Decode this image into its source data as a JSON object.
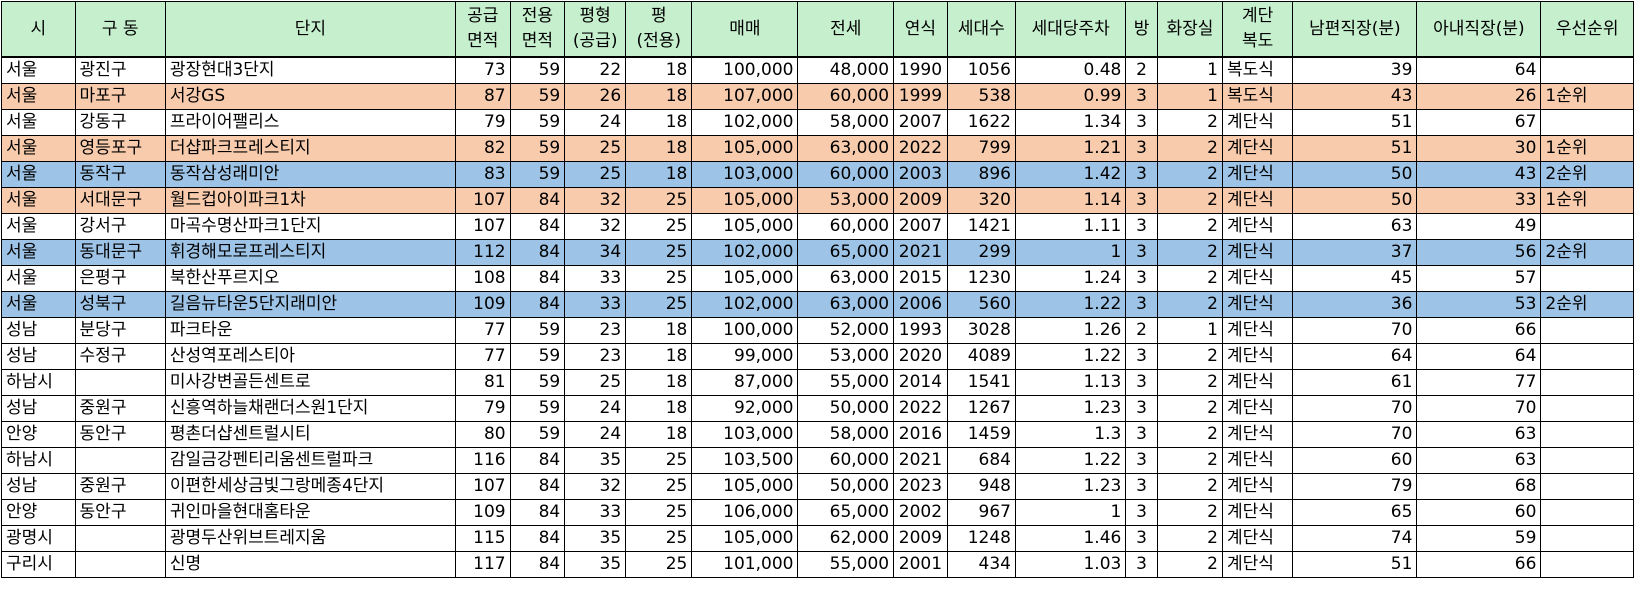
{
  "headers": [
    {
      "line1": "시",
      "line2": ""
    },
    {
      "line1": "구 동",
      "line2": ""
    },
    {
      "line1": "단지",
      "line2": ""
    },
    {
      "line1": "공급",
      "line2": "면적"
    },
    {
      "line1": "전용",
      "line2": "면적"
    },
    {
      "line1": "평형",
      "line2": "(공급)"
    },
    {
      "line1": "평",
      "line2": "(전용)"
    },
    {
      "line1": "매매",
      "line2": ""
    },
    {
      "line1": "전세",
      "line2": ""
    },
    {
      "line1": "연식",
      "line2": ""
    },
    {
      "line1": "세대수",
      "line2": ""
    },
    {
      "line1": "세대당주차",
      "line2": ""
    },
    {
      "line1": "방",
      "line2": ""
    },
    {
      "line1": "화장실",
      "line2": ""
    },
    {
      "line1": "계단",
      "line2": "복도"
    },
    {
      "line1": "남편직장(분)",
      "line2": ""
    },
    {
      "line1": "아내직장(분)",
      "line2": ""
    },
    {
      "line1": "우선순위",
      "line2": ""
    }
  ],
  "highlight_colors": {
    "header": "#c6efce",
    "rank1": "#f8cbad",
    "rank2": "#9dc3e6"
  },
  "rows": [
    {
      "highlight": "white",
      "cells": [
        "서울",
        "광진구",
        "광장현대3단지",
        "73",
        "59",
        "22",
        "18",
        "100,000",
        "48,000",
        "1990",
        "1056",
        "0.48",
        "2",
        "1",
        "복도식",
        "39",
        "64",
        ""
      ]
    },
    {
      "highlight": "orange",
      "cells": [
        "서울",
        "마포구",
        "서강GS",
        "87",
        "59",
        "26",
        "18",
        "107,000",
        "60,000",
        "1999",
        "538",
        "0.99",
        "3",
        "1",
        "복도식",
        "43",
        "26",
        "1순위"
      ]
    },
    {
      "highlight": "white",
      "cells": [
        "서울",
        "강동구",
        "프라이어팰리스",
        "79",
        "59",
        "24",
        "18",
        "102,000",
        "58,000",
        "2007",
        "1622",
        "1.34",
        "3",
        "2",
        "계단식",
        "51",
        "67",
        ""
      ]
    },
    {
      "highlight": "orange",
      "cells": [
        "서울",
        "영등포구",
        "더샵파크프레스티지",
        "82",
        "59",
        "25",
        "18",
        "105,000",
        "63,000",
        "2022",
        "799",
        "1.21",
        "3",
        "2",
        "계단식",
        "51",
        "30",
        "1순위"
      ]
    },
    {
      "highlight": "blue",
      "cells": [
        "서울",
        "동작구",
        "동작삼성래미안",
        "83",
        "59",
        "25",
        "18",
        "103,000",
        "60,000",
        "2003",
        "896",
        "1.42",
        "3",
        "2",
        "계단식",
        "50",
        "43",
        "2순위"
      ]
    },
    {
      "highlight": "orange",
      "cells": [
        "서울",
        "서대문구",
        "월드컵아이파크1차",
        "107",
        "84",
        "32",
        "25",
        "105,000",
        "53,000",
        "2009",
        "320",
        "1.14",
        "3",
        "2",
        "계단식",
        "50",
        "33",
        "1순위"
      ]
    },
    {
      "highlight": "white",
      "cells": [
        "서울",
        "강서구",
        "마곡수명산파크1단지",
        "107",
        "84",
        "32",
        "25",
        "105,000",
        "60,000",
        "2007",
        "1421",
        "1.11",
        "3",
        "2",
        "계단식",
        "63",
        "49",
        ""
      ]
    },
    {
      "highlight": "blue",
      "cells": [
        "서울",
        "동대문구",
        "휘경해모로프레스티지",
        "112",
        "84",
        "34",
        "25",
        "102,000",
        "65,000",
        "2021",
        "299",
        "1",
        "3",
        "2",
        "계단식",
        "37",
        "56",
        "2순위"
      ]
    },
    {
      "highlight": "white",
      "cells": [
        "서울",
        "은평구",
        "북한산푸르지오",
        "108",
        "84",
        "33",
        "25",
        "105,000",
        "63,000",
        "2015",
        "1230",
        "1.24",
        "3",
        "2",
        "계단식",
        "45",
        "57",
        ""
      ]
    },
    {
      "highlight": "blue",
      "cells": [
        "서울",
        "성북구",
        "길음뉴타운5단지래미안",
        "109",
        "84",
        "33",
        "25",
        "102,000",
        "63,000",
        "2006",
        "560",
        "1.22",
        "3",
        "2",
        "계단식",
        "36",
        "53",
        "2순위"
      ]
    },
    {
      "highlight": "white",
      "cells": [
        "성남",
        "분당구",
        "파크타운",
        "77",
        "59",
        "23",
        "18",
        "100,000",
        "52,000",
        "1993",
        "3028",
        "1.26",
        "2",
        "1",
        "계단식",
        "70",
        "66",
        ""
      ]
    },
    {
      "highlight": "white",
      "cells": [
        "성남",
        "수정구",
        "산성역포레스티아",
        "77",
        "59",
        "23",
        "18",
        "99,000",
        "53,000",
        "2020",
        "4089",
        "1.22",
        "3",
        "2",
        "계단식",
        "64",
        "64",
        ""
      ]
    },
    {
      "highlight": "white",
      "cells": [
        "하남시",
        "",
        "미사강변골든센트로",
        "81",
        "59",
        "25",
        "18",
        "87,000",
        "55,000",
        "2014",
        "1541",
        "1.13",
        "3",
        "2",
        "계단식",
        "61",
        "77",
        ""
      ]
    },
    {
      "highlight": "white",
      "cells": [
        "성남",
        "중원구",
        "신흥역하늘채랜더스원1단지",
        "79",
        "59",
        "24",
        "18",
        "92,000",
        "50,000",
        "2022",
        "1267",
        "1.23",
        "3",
        "2",
        "계단식",
        "70",
        "70",
        ""
      ]
    },
    {
      "highlight": "white",
      "cells": [
        "안양",
        "동안구",
        "평촌더샵센트럴시티",
        "80",
        "59",
        "24",
        "18",
        "103,000",
        "58,000",
        "2016",
        "1459",
        "1.3",
        "3",
        "2",
        "계단식",
        "70",
        "63",
        ""
      ]
    },
    {
      "highlight": "white",
      "cells": [
        "하남시",
        "",
        "감일금강펜티리움센트럴파크",
        "116",
        "84",
        "35",
        "25",
        "103,500",
        "60,000",
        "2021",
        "684",
        "1.22",
        "3",
        "2",
        "계단식",
        "60",
        "63",
        ""
      ]
    },
    {
      "highlight": "white",
      "cells": [
        "성남",
        "중원구",
        "이편한세상금빛그랑메종4단지",
        "107",
        "84",
        "32",
        "25",
        "105,000",
        "50,000",
        "2023",
        "948",
        "1.23",
        "3",
        "2",
        "계단식",
        "79",
        "68",
        ""
      ]
    },
    {
      "highlight": "white",
      "cells": [
        "안양",
        "동안구",
        "귀인마을현대홈타운",
        "109",
        "84",
        "33",
        "25",
        "106,000",
        "65,000",
        "2002",
        "967",
        "1",
        "3",
        "2",
        "계단식",
        "65",
        "60",
        ""
      ]
    },
    {
      "highlight": "white",
      "cells": [
        "광명시",
        "",
        "광명두산위브트레지움",
        "115",
        "84",
        "35",
        "25",
        "105,000",
        "62,000",
        "2009",
        "1248",
        "1.46",
        "3",
        "2",
        "계단식",
        "74",
        "59",
        ""
      ]
    },
    {
      "highlight": "white",
      "cells": [
        "구리시",
        "",
        "신명",
        "117",
        "84",
        "35",
        "25",
        "101,000",
        "55,000",
        "2001",
        "434",
        "1.03",
        "3",
        "2",
        "계단식",
        "51",
        "66",
        ""
      ]
    }
  ]
}
